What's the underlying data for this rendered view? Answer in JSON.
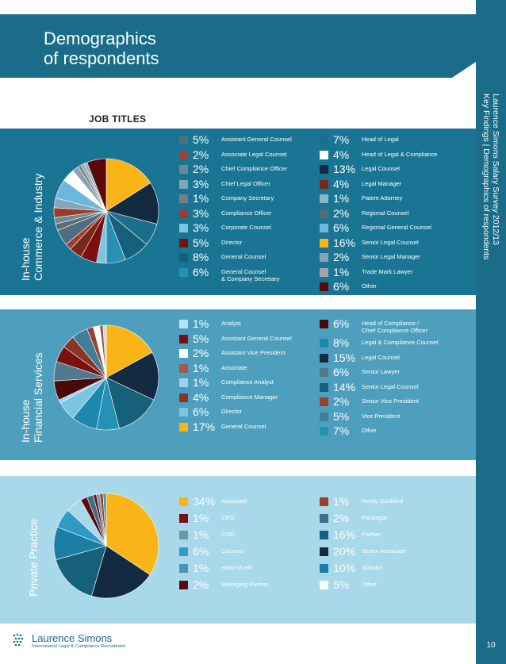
{
  "page": {
    "title_line1": "Demographics",
    "title_line2": "of respondents",
    "vertical_line1": "Laurence Simons Salary Survey 2012/13",
    "vertical_line2": "Key Findings | Demographics of respondents",
    "page_number": "10",
    "section_header": "JOB TITLES"
  },
  "brand": {
    "name": "Laurence Simons",
    "tagline": "International Legal & Compliance Recruitment"
  },
  "colors": {
    "dark_teal": "#1a7595",
    "mid_blue": "#4e9fbe",
    "light_blue": "#a8d8ea",
    "header_teal": "#1a6c88"
  },
  "chart_data": [
    {
      "type": "pie",
      "title": "In-house Commerce & Industry",
      "title_line1": "In-house",
      "title_line2": "Commerce & Industry",
      "categories": [
        "Senior Legal Counsel",
        "Legal Counsel",
        "Head of Legal",
        "General Counsel",
        "General Counsel & Company Secretary",
        "Corporate Counsel",
        "Director",
        "Legal Manager",
        "Associate Legal Counsel",
        "Assistant General Counsel",
        "Regional Counsel",
        "Chief Compliance Officer",
        "Compliance Officer",
        "Chief Legal Officer",
        "Regional General Counsel",
        "Head of Legal & Compliance",
        "Senior Legal Manager",
        "Company Secretary",
        "Trade Mark Lawyer",
        "Patent Attorney",
        "Other"
      ],
      "values": [
        16,
        13,
        7,
        8,
        6,
        3,
        5,
        4,
        2,
        5,
        2,
        2,
        3,
        3,
        6,
        4,
        2,
        1,
        1,
        1,
        6
      ],
      "colors": [
        "#f9b518",
        "#142a40",
        "#1b6f8c",
        "#15607a",
        "#2790b5",
        "#7cc5e2",
        "#7a1010",
        "#7a2618",
        "#9c4133",
        "#4f6e82",
        "#5f6b73",
        "#6a8a9c",
        "#983d2c",
        "#7fa8bc",
        "#6db7dc",
        "#ffffff",
        "#8aa3b3",
        "#777f85",
        "#a3a6a8",
        "#88b6ca",
        "#5a0a0a"
      ],
      "legend_left": [
        {
          "pct": "5%",
          "label": "Assistant General Counsel",
          "color": "#4f6e82"
        },
        {
          "pct": "2%",
          "label": "Associate Legal Counsel",
          "color": "#9c4133"
        },
        {
          "pct": "2%",
          "label": "Chief Compliance Officer",
          "color": "#6a8a9c"
        },
        {
          "pct": "3%",
          "label": "Chief Legal Officer",
          "color": "#7fa8bc"
        },
        {
          "pct": "1%",
          "label": "Company Secretary",
          "color": "#777f85"
        },
        {
          "pct": "3%",
          "label": "Compliance Officer",
          "color": "#983d2c"
        },
        {
          "pct": "3%",
          "label": "Corporate Counsel",
          "color": "#7cc5e2"
        },
        {
          "pct": "5%",
          "label": "Director",
          "color": "#7a1010"
        },
        {
          "pct": "8%",
          "label": "General Counsel",
          "color": "#15607a"
        },
        {
          "pct": "6%",
          "label": "General Counsel\n& Company Secretary",
          "color": "#2790b5"
        }
      ],
      "legend_right": [
        {
          "pct": "7%",
          "label": "Head of Legal",
          "color": "#1b6f8c"
        },
        {
          "pct": "4%",
          "label": "Head of Legal & Compliance",
          "color": "#ffffff"
        },
        {
          "pct": "13%",
          "label": "Legal Counsel",
          "color": "#142a40"
        },
        {
          "pct": "4%",
          "label": "Legal Manager",
          "color": "#7a2618"
        },
        {
          "pct": "1%",
          "label": "Patent Attorney",
          "color": "#88b6ca"
        },
        {
          "pct": "2%",
          "label": "Regional Counsel",
          "color": "#5f6b73"
        },
        {
          "pct": "6%",
          "label": "Regional General Counsel",
          "color": "#6db7dc"
        },
        {
          "pct": "16%",
          "label": "Senior Legal Counsel",
          "color": "#f9b518"
        },
        {
          "pct": "2%",
          "label": "Senior Legal Manager",
          "color": "#8aa3b3"
        },
        {
          "pct": "1%",
          "label": "Trade Mark Lawyer",
          "color": "#a3a6a8"
        },
        {
          "pct": "6%",
          "label": "Other",
          "color": "#5a0a0a"
        }
      ]
    },
    {
      "type": "pie",
      "title": "In-house Financial Services",
      "title_line1": "In-house",
      "title_line2": "Financial Services",
      "categories": [
        "General Counsel",
        "Legal Counsel",
        "Senior Legal Counsel",
        "Other",
        "Legal & Compliance Counsel",
        "Director",
        "Compliance Analyst",
        "Head of Compliance / Chief Compliance Officer",
        "Senior Lawyer",
        "Assistant General Counsel",
        "Compliance Manager",
        "Vice President",
        "Senior Vice President",
        "Assistant Vice President",
        "Associate",
        "Analyst"
      ],
      "values": [
        17,
        15,
        14,
        7,
        8,
        6,
        1,
        6,
        6,
        5,
        4,
        5,
        2,
        2,
        1,
        1
      ],
      "colors": [
        "#f9b518",
        "#142a40",
        "#15607a",
        "#2790b5",
        "#1d88ad",
        "#7cc5e2",
        "#9dd3ea",
        "#4a0a0a",
        "#50788e",
        "#7a1010",
        "#8a3526",
        "#3f7e9a",
        "#9a4230",
        "#ffffff",
        "#a5584a",
        "#b7e1f1"
      ],
      "legend_left": [
        {
          "pct": "1%",
          "label": "Analyst",
          "color": "#b7e1f1"
        },
        {
          "pct": "5%",
          "label": "Assistant General Counsel",
          "color": "#7a1010"
        },
        {
          "pct": "2%",
          "label": "Assistant Vice President",
          "color": "#ffffff"
        },
        {
          "pct": "1%",
          "label": "Associate",
          "color": "#a5584a"
        },
        {
          "pct": "1%",
          "label": "Compliance Analyst",
          "color": "#9dd3ea"
        },
        {
          "pct": "4%",
          "label": "Compliance Manager",
          "color": "#8a3526"
        },
        {
          "pct": "6%",
          "label": "Director",
          "color": "#7cc5e2"
        },
        {
          "pct": "17%",
          "label": "General Counsel",
          "color": "#f9b518"
        }
      ],
      "legend_right": [
        {
          "pct": "6%",
          "label": "Head of Compliance /\nChief Compliance Officer",
          "color": "#4a0a0a"
        },
        {
          "pct": "8%",
          "label": "Legal & Compliance Counsel",
          "color": "#1d88ad"
        },
        {
          "pct": "15%",
          "label": "Legal Counsel",
          "color": "#142a40"
        },
        {
          "pct": "6%",
          "label": "Senior Lawyer",
          "color": "#50788e"
        },
        {
          "pct": "14%",
          "label": "Senior Legal Counsel",
          "color": "#15607a"
        },
        {
          "pct": "2%",
          "label": "Senior Vice President",
          "color": "#9a4230"
        },
        {
          "pct": "5%",
          "label": "Vice President",
          "color": "#3f7e9a"
        },
        {
          "pct": "7%",
          "label": "Other",
          "color": "#2790b5"
        }
      ]
    },
    {
      "type": "pie",
      "title": "Private Practice",
      "title_line1": "Private Practice",
      "title_line2": "",
      "categories": [
        "Associate",
        "Senior Associate",
        "Partner",
        "Solicitor",
        "Counsel",
        "Other",
        "Managing Partner",
        "Paralegal",
        "CEO",
        "COO",
        "Newly Qualified",
        "Head of HR"
      ],
      "values": [
        34,
        20,
        16,
        10,
        6,
        5,
        2,
        2,
        1,
        1,
        1,
        1
      ],
      "colors": [
        "#f9b518",
        "#142a40",
        "#15607a",
        "#1b7fa3",
        "#2f9bc4",
        "#a8d8ea",
        "#5a0a0a",
        "#3d6e87",
        "#7a1010",
        "#6a97ad",
        "#9a4230",
        "#4f92b1"
      ],
      "legend_left": [
        {
          "pct": "34%",
          "label": "Associate",
          "color": "#f9b518"
        },
        {
          "pct": "1%",
          "label": "CEO",
          "color": "#7a1010"
        },
        {
          "pct": "1%",
          "label": "COO",
          "color": "#6a97ad"
        },
        {
          "pct": "6%",
          "label": "Counsel",
          "color": "#2f9bc4"
        },
        {
          "pct": "1%",
          "label": "Head of HR",
          "color": "#4f92b1"
        },
        {
          "pct": "2%",
          "label": "Managing Partner",
          "color": "#5a0a0a"
        }
      ],
      "legend_right": [
        {
          "pct": "1%",
          "label": "Newly Qualified",
          "color": "#9a4230"
        },
        {
          "pct": "2%",
          "label": "Paralegal",
          "color": "#3d6e87"
        },
        {
          "pct": "16%",
          "label": "Partner",
          "color": "#15607a"
        },
        {
          "pct": "20%",
          "label": "Senior Associate",
          "color": "#142a40"
        },
        {
          "pct": "10%",
          "label": "Solicitor",
          "color": "#1b7fa3"
        },
        {
          "pct": "5%",
          "label": "Other",
          "color": "#ffffff"
        }
      ]
    }
  ]
}
